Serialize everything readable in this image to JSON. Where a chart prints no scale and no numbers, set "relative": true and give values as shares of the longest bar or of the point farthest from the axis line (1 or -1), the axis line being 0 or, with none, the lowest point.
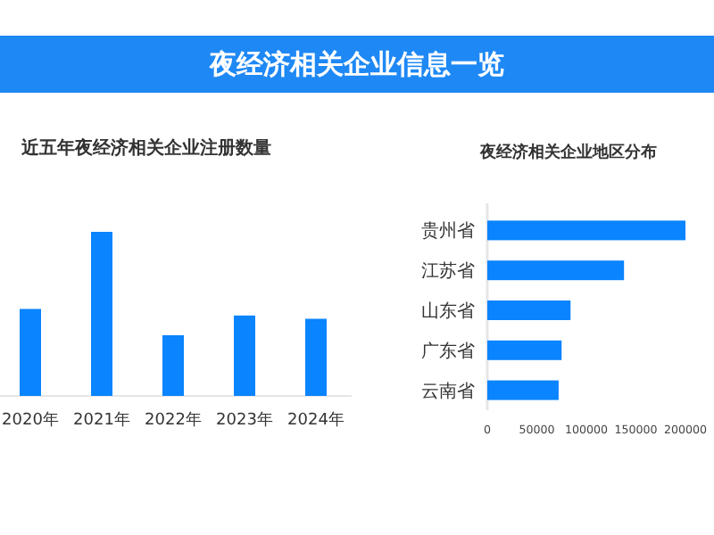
{
  "chart_data": [
    {
      "type": "bar",
      "title": "夜经济相关企业信息一览",
      "subtitle": "近五年夜经济相关企业注册数量",
      "categories": [
        "2020年",
        "2021年",
        "2022年",
        "2023年",
        "2024年"
      ],
      "relative": true,
      "color": "#0a84ff",
      "values": [
        0.53,
        1,
        0.37,
        0.49,
        0.47
      ]
    },
    {
      "type": "bar",
      "title": "夜经济相关企业地区分布",
      "orientation": "horizontal",
      "categories": [
        "贵州省",
        "江苏省",
        "山东省",
        "广东省",
        "云南省"
      ],
      "color": "#0a84ff",
      "values": [
        200000,
        138000,
        84000,
        75000,
        72000
      ],
      "xlim": [
        0,
        200000
      ],
      "xticks": [
        0,
        50000,
        100000,
        150000,
        200000
      ]
    }
  ]
}
